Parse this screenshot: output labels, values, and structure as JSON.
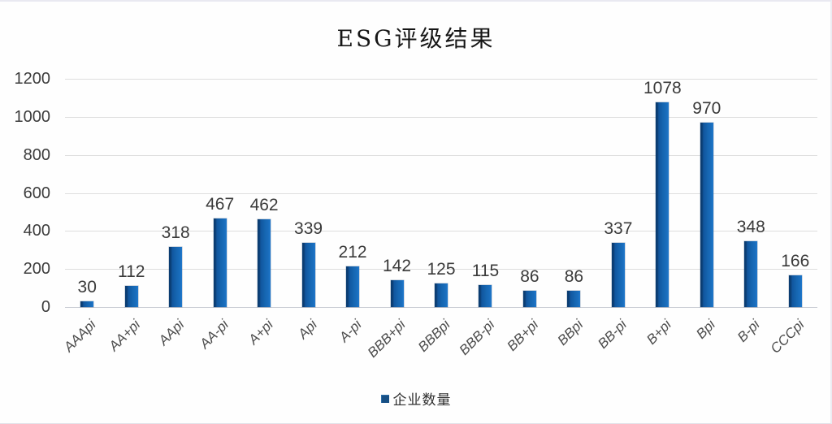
{
  "title": "ESG评级结果",
  "legend": {
    "label": "企业数量",
    "marker_color": "#174f84"
  },
  "colors": {
    "bar_fill": "#1565b0",
    "bar_edge": "#0b3d72",
    "gridline": "#dedede",
    "axis_text": "#3c3c3c",
    "category_text": "#4c4c4c",
    "background": "#fefefe"
  },
  "chart_data": {
    "type": "bar",
    "title": "ESG评级结果",
    "series_name": "企业数量",
    "categories": [
      "AAApi",
      "AA+pi",
      "AApi",
      "AA-pi",
      "A+pi",
      "Api",
      "A-pi",
      "BBB+pi",
      "BBBpi",
      "BBB-pi",
      "BB+pi",
      "BBpi",
      "BB-pi",
      "B+pi",
      "Bpi",
      "B-pi",
      "CCCpi"
    ],
    "values": [
      30,
      112,
      318,
      467,
      462,
      339,
      212,
      142,
      125,
      115,
      86,
      86,
      337,
      1078,
      970,
      348,
      166
    ],
    "xlabel": "",
    "ylabel": "",
    "ylim": [
      0,
      1200
    ],
    "yticks": [
      0,
      200,
      400,
      600,
      800,
      1000,
      1200
    ],
    "grid": true,
    "data_labels": true,
    "legend_position": "bottom"
  }
}
